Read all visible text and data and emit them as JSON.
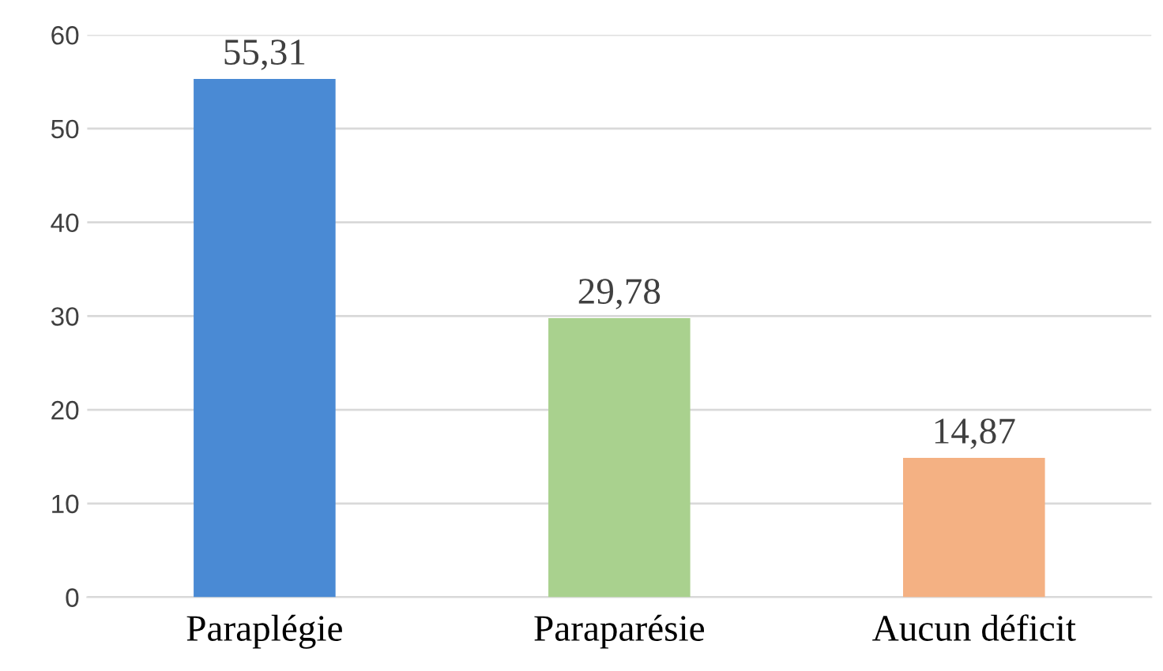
{
  "chart_data": {
    "type": "bar",
    "categories": [
      "Paraplégie",
      "Paraparésie",
      "Aucun déficit"
    ],
    "values": [
      55.31,
      29.78,
      14.87
    ],
    "colors": [
      "#4a8ad4",
      "#a9d18e",
      "#f4b183"
    ],
    "value_labels": [
      "55,31",
      "29,78",
      "14,87"
    ],
    "ylim": [
      0,
      60
    ],
    "yticks": [
      0,
      10,
      20,
      30,
      40,
      50,
      60
    ],
    "grid": "y",
    "legend": false
  }
}
